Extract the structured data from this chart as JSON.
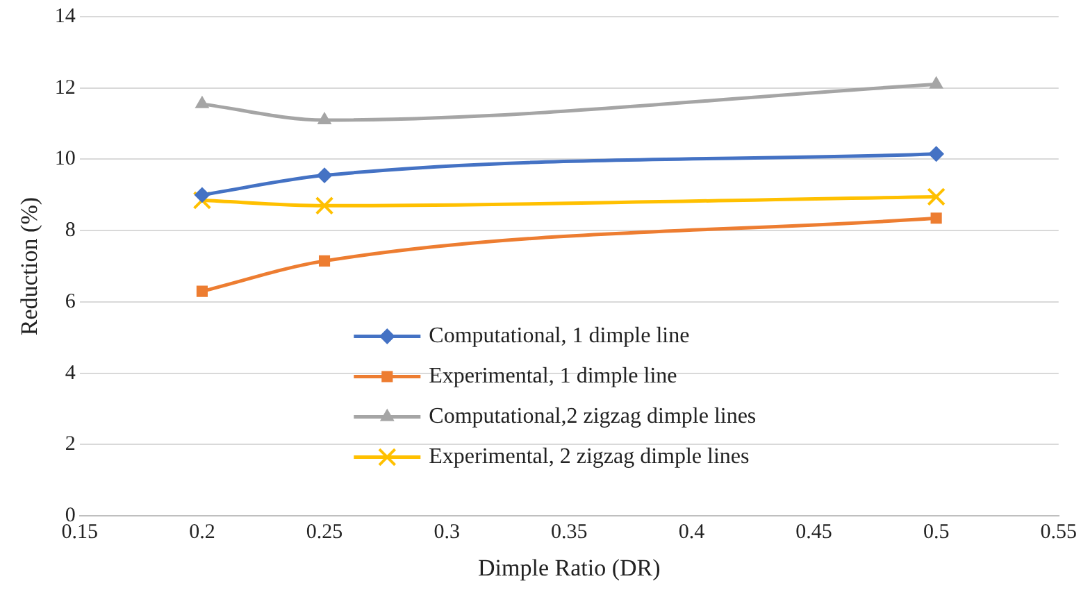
{
  "chart_data": {
    "type": "line",
    "xlabel": "Dimple Ratio (DR)",
    "ylabel": "Reduction (%)",
    "x": [
      0.2,
      0.25,
      0.5
    ],
    "series": [
      {
        "name": "Computational, 1 dimple line",
        "color": "#4472c4",
        "marker": "diamond",
        "values": [
          9.0,
          9.55,
          10.15
        ]
      },
      {
        "name": "Experimental, 1 dimple line",
        "color": "#ed7d31",
        "marker": "square",
        "values": [
          6.3,
          7.15,
          8.35
        ]
      },
      {
        "name": "Computational,2 zigzag dimple lines",
        "color": "#a5a5a5",
        "marker": "triangle",
        "values": [
          11.55,
          11.1,
          12.1
        ]
      },
      {
        "name": "Experimental, 2 zigzag dimple lines",
        "color": "#ffc000",
        "marker": "cross",
        "values": [
          8.85,
          8.7,
          8.95
        ]
      }
    ],
    "xlim": [
      0.15,
      0.55
    ],
    "xticks": [
      0.15,
      0.2,
      0.25,
      0.3,
      0.35,
      0.4,
      0.45,
      0.5,
      0.55
    ],
    "ylim": [
      0,
      14
    ],
    "yticks": [
      0,
      2,
      4,
      6,
      8,
      10,
      12,
      14
    ],
    "grid": "y",
    "legend": "bottom",
    "line_style": "solid"
  }
}
